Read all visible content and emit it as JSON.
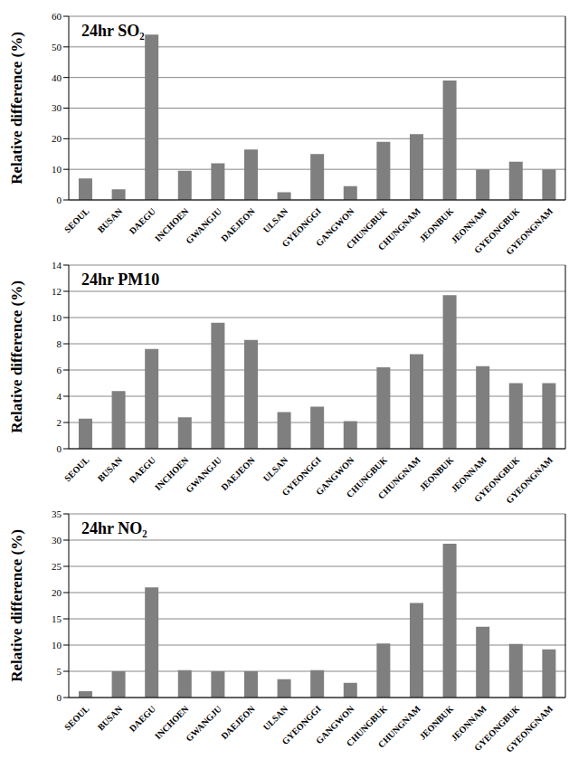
{
  "chart_data": [
    {
      "type": "bar",
      "title": "24hr SO₂",
      "y_label": "Relative difference (%)",
      "categories": [
        "SEOUL",
        "BUSAN",
        "DAEGU",
        "INCHOEN",
        "GWANGJU",
        "DAEJEON",
        "ULSAN",
        "GYEONGGI",
        "GANGWON",
        "CHUNGBUK",
        "CHUNGNAM",
        "JEONBUK",
        "JEONNAM",
        "GYEONGBUK",
        "GYEONGNAM"
      ],
      "values": [
        7,
        3.5,
        54,
        9.5,
        12,
        16.5,
        2.5,
        15,
        4.5,
        19,
        21.5,
        39,
        10,
        12.5,
        10
      ],
      "color": "#7f7f7f",
      "ylim": [
        0,
        60
      ],
      "yticks": [
        0,
        10,
        20,
        30,
        40,
        50,
        60
      ],
      "grid": true
    },
    {
      "type": "bar",
      "title": "24hr PM10",
      "y_label": "Relative difference (%)",
      "categories": [
        "SEOUL",
        "BUSAN",
        "DAEGU",
        "INCHOEN",
        "GWANGJU",
        "DAEJEON",
        "ULSAN",
        "GYEONGGI",
        "GANGWON",
        "CHUNGBUK",
        "CHUNGNAM",
        "JEONBUK",
        "JEONNAM",
        "GYEONGBUK",
        "GYEONGNAM"
      ],
      "values": [
        2.3,
        4.4,
        7.6,
        2.4,
        9.6,
        8.3,
        2.8,
        3.2,
        2.1,
        6.2,
        7.2,
        11.7,
        6.3,
        5.0,
        5.0
      ],
      "color": "#7f7f7f",
      "ylim": [
        0,
        14
      ],
      "yticks": [
        0,
        2,
        4,
        6,
        8,
        10,
        12,
        14
      ],
      "grid": true
    },
    {
      "type": "bar",
      "title": "24hr NO₂",
      "y_label": "Relative difference (%)",
      "categories": [
        "SEOUL",
        "BUSAN",
        "DAEGU",
        "INCHOEN",
        "GWANGJU",
        "DAEJEON",
        "ULSAN",
        "GYEONGGI",
        "GANGWON",
        "CHUNGBUK",
        "CHUNGNAM",
        "JEONBUK",
        "JEONNAM",
        "GYEONGBUK",
        "GYEONGNAM"
      ],
      "values": [
        1.2,
        5,
        21,
        5.2,
        5,
        5,
        3.5,
        5.2,
        2.8,
        10.3,
        18,
        29.3,
        13.5,
        10.2,
        9.2
      ],
      "color": "#7f7f7f",
      "ylim": [
        0,
        35
      ],
      "yticks": [
        0,
        5,
        10,
        15,
        20,
        25,
        30,
        35
      ],
      "grid": true
    }
  ]
}
